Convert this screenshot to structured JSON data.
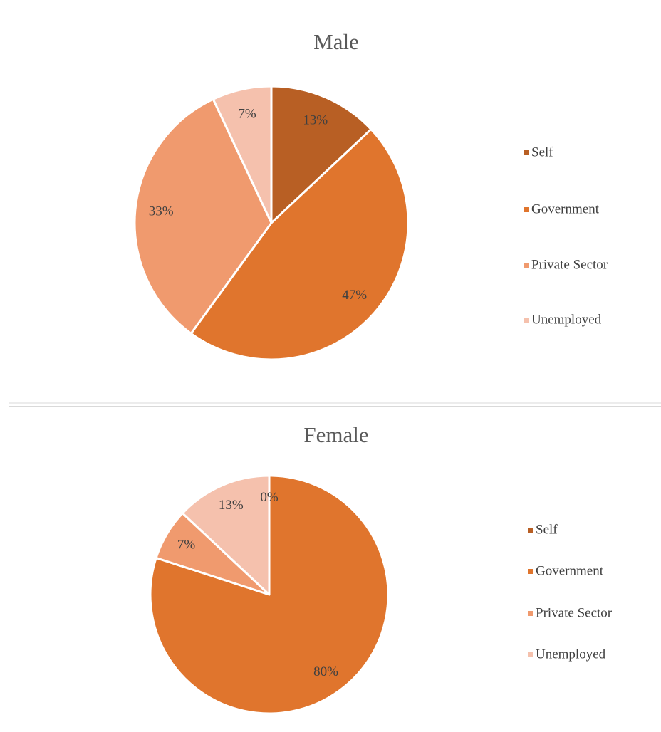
{
  "chart_data": [
    {
      "type": "pie",
      "title": "Male",
      "categories": [
        "Self",
        "Government",
        "Private Sector",
        "Unemployed"
      ],
      "values": [
        13,
        47,
        33,
        7
      ],
      "value_labels": [
        "13%",
        "47%",
        "33%",
        "7%"
      ],
      "colors": [
        "#b85f24",
        "#e0752d",
        "#f09a6e",
        "#f5c1ad"
      ],
      "legend": "right"
    },
    {
      "type": "pie",
      "title": "Female",
      "categories": [
        "Self",
        "Government",
        "Private Sector",
        "Unemployed"
      ],
      "values": [
        0,
        80,
        7,
        13
      ],
      "value_labels": [
        "0%",
        "80%",
        "7%",
        "13%"
      ],
      "colors": [
        "#b85f24",
        "#e0752d",
        "#f09a6e",
        "#f5c1ad"
      ],
      "legend": "right"
    }
  ]
}
